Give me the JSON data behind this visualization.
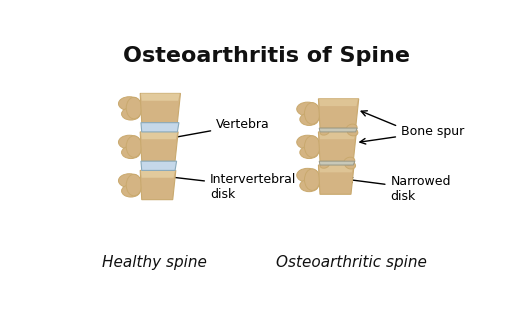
{
  "title": "Osteoarthritis of Spine",
  "title_fontsize": 16,
  "title_fontstyle": "normal",
  "title_fontweight": "bold",
  "title_fontfamily": "sans-serif",
  "bg_color": "#ffffff",
  "bone_color_light": "#D4B483",
  "bone_color_mid": "#C9A96E",
  "bone_color_dark": "#B8955A",
  "bone_color_highlight": "#E8D4A8",
  "disk_color_healthy": "#C5D8EA",
  "disk_color_oa": "#C8C8B8",
  "label_fontsize": 9,
  "caption_fontsize": 11,
  "caption_fontstyle": "italic",
  "caption_fontfamily": "sans-serif",
  "left_caption": "Healthy spine",
  "right_caption": "Osteoarthritic spine"
}
